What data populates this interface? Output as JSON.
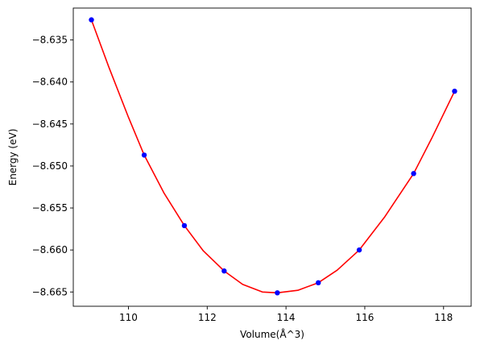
{
  "chart_data": {
    "type": "scatter",
    "title": "",
    "xlabel": "Volume(Å^3)",
    "ylabel": "Energy (eV)",
    "xlim": [
      108.6,
      118.7
    ],
    "ylim": [
      -8.6667,
      -8.6312
    ],
    "x_ticks": [
      110,
      112,
      114,
      116,
      118
    ],
    "x_tick_labels": [
      "110",
      "112",
      "114",
      "116",
      "118"
    ],
    "y_ticks": [
      -8.665,
      -8.66,
      -8.655,
      -8.65,
      -8.645,
      -8.64,
      -8.635
    ],
    "y_tick_labels": [
      "−8.665",
      "−8.660",
      "−8.655",
      "−8.650",
      "−8.645",
      "−8.640",
      "−8.635"
    ],
    "grid": false,
    "series": [
      {
        "kind": "points",
        "color": "#0000ff",
        "x": [
          109.06,
          110.4,
          111.42,
          112.43,
          113.78,
          114.82,
          115.86,
          117.24,
          118.28
        ],
        "y": [
          -8.6326,
          -8.6487,
          -8.6571,
          -8.6625,
          -8.6651,
          -8.6639,
          -8.66,
          -8.6509,
          -8.6411
        ]
      },
      {
        "kind": "fit-curve",
        "color": "#ff0000",
        "x": [
          109.06,
          109.5,
          110.0,
          110.4,
          110.9,
          111.42,
          111.9,
          112.43,
          112.9,
          113.4,
          113.78,
          114.3,
          114.82,
          115.3,
          115.86,
          116.5,
          117.24,
          117.7,
          118.28
        ],
        "y": [
          -8.6326,
          -8.6382,
          -8.6442,
          -8.6487,
          -8.6532,
          -8.6571,
          -8.6601,
          -8.6625,
          -8.6641,
          -8.665,
          -8.6651,
          -8.6648,
          -8.6639,
          -8.6624,
          -8.66,
          -8.6561,
          -8.6509,
          -8.6467,
          -8.6411
        ]
      }
    ]
  }
}
